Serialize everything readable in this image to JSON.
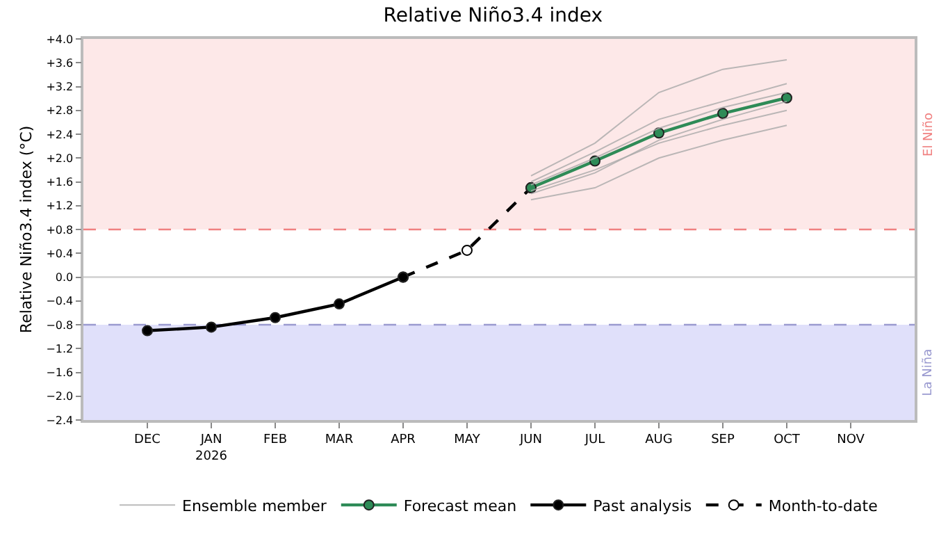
{
  "chart_data": {
    "type": "line",
    "title": "Relative Niño3.4 index",
    "ylabel": "Relative Niño3.4 index (°C)",
    "categories": [
      "DEC",
      "JAN\n2026",
      "FEB",
      "MAR",
      "APR",
      "MAY",
      "JUN",
      "JUL",
      "AUG",
      "SEP",
      "OCT",
      "NOV"
    ],
    "ylim": [
      -2.4,
      4.0
    ],
    "yticks": [
      {
        "value": -2.4,
        "label": "−2.4"
      },
      {
        "value": -2.0,
        "label": "−2.0"
      },
      {
        "value": -1.6,
        "label": "−1.6"
      },
      {
        "value": -1.2,
        "label": "−1.2"
      },
      {
        "value": -0.8,
        "label": "−0.8"
      },
      {
        "value": -0.4,
        "label": "−0.4"
      },
      {
        "value": 0,
        "label": "0.0"
      },
      {
        "value": 0.4,
        "label": "+0.4"
      },
      {
        "value": 0.8,
        "label": "+0.8"
      },
      {
        "value": 1.2,
        "label": "+1.2"
      },
      {
        "value": 1.6,
        "label": "+1.6"
      },
      {
        "value": 2.0,
        "label": "+2.0"
      },
      {
        "value": 2.4,
        "label": "+2.4"
      },
      {
        "value": 2.8,
        "label": "+2.8"
      },
      {
        "value": 3.2,
        "label": "+3.2"
      },
      {
        "value": 3.6,
        "label": "+3.6"
      },
      {
        "value": 4.0,
        "label": "+4.0"
      }
    ],
    "bands": [
      {
        "axis": "y",
        "from": 0.8,
        "to": 4.0,
        "label": "El Niño",
        "color": "#fde8e8"
      },
      {
        "axis": "y",
        "from": -2.4,
        "to": -0.8,
        "label": "La Niña",
        "color": "#e0e0fa"
      }
    ],
    "ref_lines": [
      {
        "axis": "y",
        "value": 0.8,
        "color": "#f08080",
        "line_style": "dashed"
      },
      {
        "axis": "y",
        "value": -0.8,
        "color": "#9a9ad0",
        "line_style": "dashed"
      },
      {
        "axis": "y",
        "value": 0,
        "color": "#d0d0d0",
        "line_style": "solid"
      }
    ],
    "legend": "bottom",
    "series": [
      {
        "name": "Ensemble member",
        "color": "#aaaaaa",
        "marker": "none",
        "values": [
          null,
          null,
          null,
          null,
          null,
          null,
          1.7,
          2.25,
          3.1,
          3.49,
          3.65,
          null
        ]
      },
      {
        "color": "#aaaaaa",
        "marker": "none",
        "values": [
          null,
          null,
          null,
          null,
          null,
          null,
          1.3,
          1.5,
          2.0,
          2.3,
          2.55,
          null
        ]
      },
      {
        "color": "#aaaaaa",
        "marker": "none",
        "values": [
          null,
          null,
          null,
          null,
          null,
          null,
          1.6,
          2.1,
          2.65,
          2.95,
          3.25,
          null
        ]
      },
      {
        "color": "#aaaaaa",
        "marker": "none",
        "values": [
          null,
          null,
          null,
          null,
          null,
          null,
          1.45,
          1.8,
          2.25,
          2.55,
          2.8,
          null
        ]
      },
      {
        "color": "#aaaaaa",
        "marker": "none",
        "values": [
          null,
          null,
          null,
          null,
          null,
          null,
          1.55,
          2.0,
          2.5,
          2.85,
          3.1,
          null
        ]
      },
      {
        "color": "#aaaaaa",
        "marker": "none",
        "values": [
          null,
          null,
          null,
          null,
          null,
          null,
          1.4,
          1.75,
          2.3,
          2.65,
          2.95,
          null
        ]
      },
      {
        "name": "Forecast mean",
        "color": "#2e8b57",
        "marker": "circle",
        "line_style": "solid",
        "values": [
          null,
          null,
          null,
          null,
          null,
          null,
          1.5,
          1.95,
          2.42,
          2.75,
          3.01,
          null
        ]
      },
      {
        "name": "Past analysis",
        "color": "#000000",
        "marker": "circle",
        "line_style": "solid",
        "values": [
          -0.9,
          -0.84,
          -0.68,
          -0.45,
          0.0,
          null,
          null,
          null,
          null,
          null,
          null,
          null
        ]
      },
      {
        "name": "Month-to-date",
        "color": "#000000",
        "marker": "circle",
        "line_style": "dashed",
        "values": [
          null,
          null,
          null,
          null,
          0.0,
          0.45,
          1.5,
          null,
          null,
          null,
          null,
          null
        ]
      }
    ]
  }
}
